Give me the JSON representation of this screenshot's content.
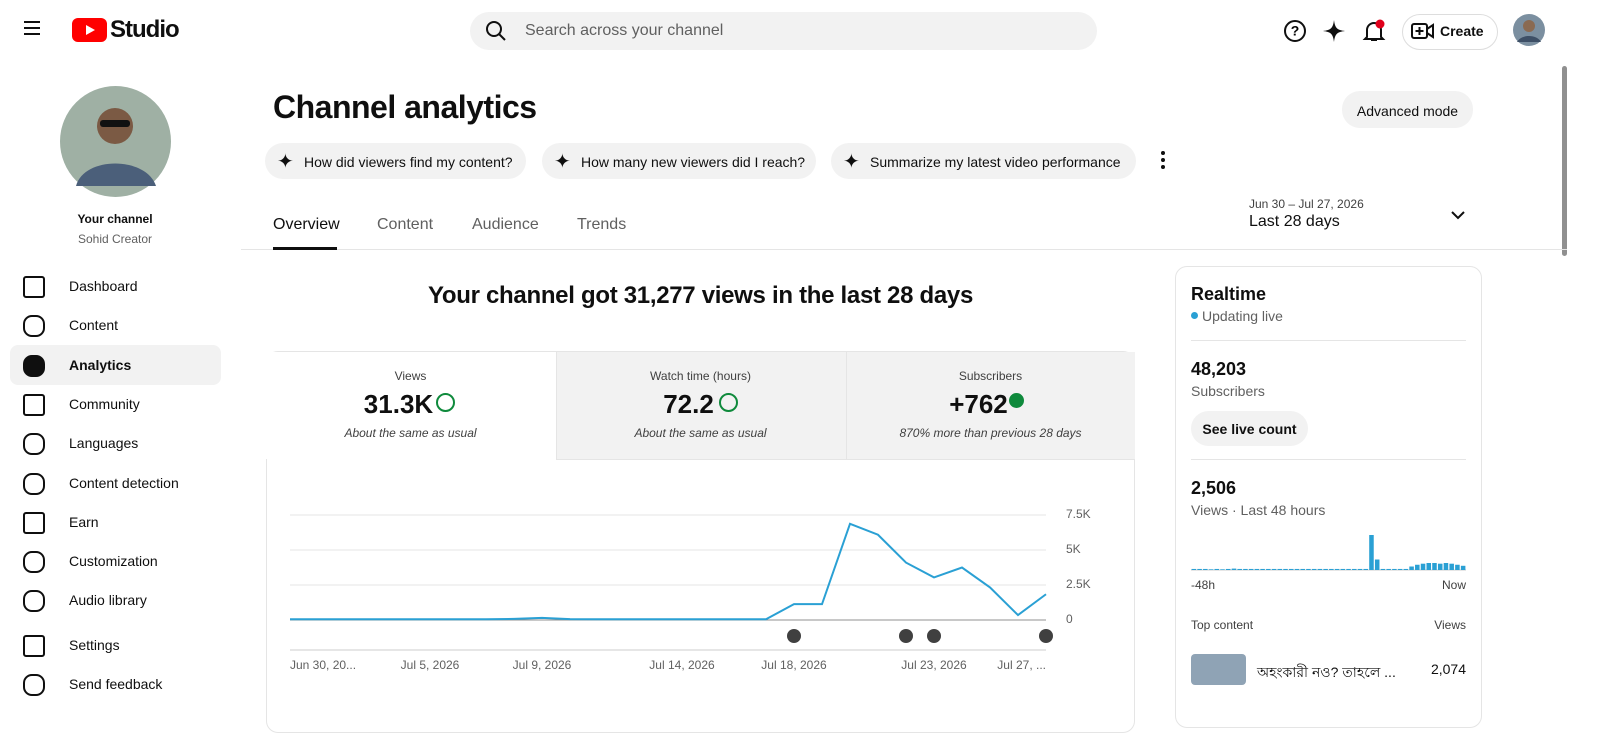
{
  "header": {
    "logo": "Studio",
    "search": "Search across your channel",
    "create": "Create"
  },
  "sidebar": {
    "channel_label": "Your channel",
    "channel_name": "Sohid Creator",
    "nav": [
      "Dashboard",
      "Content",
      "Analytics",
      "Community",
      "Languages",
      "Content detection",
      "Earn",
      "Customization",
      "Audio library",
      "Settings",
      "Send feedback"
    ],
    "active": 2
  },
  "page": {
    "title": "Channel analytics",
    "advanced_mode": "Advanced mode",
    "prompts": [
      "How did viewers find my content?",
      "How many new viewers did I reach?",
      "Summarize my latest video performance"
    ],
    "tabs": [
      "Overview",
      "Content",
      "Audience",
      "Trends"
    ],
    "active_tab": 0,
    "date_range": "Jun 30 – Jul 27, 2026",
    "period": "Last 28 days",
    "headline": "Your channel got 31,277 views in the last 28 days"
  },
  "metrics": [
    {
      "label": "Views",
      "value": "31.3K",
      "note": "About the same as usual"
    },
    {
      "label": "Watch time (hours)",
      "value": "72.2",
      "note": "About the same as usual"
    },
    {
      "label": "Subscribers",
      "value": "+762",
      "note": "870% more than previous 28 days"
    }
  ],
  "realtime": {
    "title": "Realtime",
    "status": "Updating live",
    "subscribers": "48,203",
    "subscribers_label": "Subscribers",
    "see_live": "See live count",
    "views": "2,506",
    "views_label": "Views · Last 48 hours",
    "top_content": "Top content",
    "views_col": "Views",
    "items": [
      {
        "title": "অহংকারী নও? তাহলে ...",
        "views": "2,074"
      }
    ]
  },
  "chart_data": [
    {
      "type": "line",
      "color": "#2aa0d4",
      "grid": true,
      "categories": [
        "Jun 30, 20...",
        null,
        null,
        null,
        null,
        "Jul 5, 2026",
        null,
        null,
        null,
        "Jul 9, 2026",
        null,
        null,
        null,
        null,
        "Jul 14, 2026",
        null,
        null,
        null,
        "Jul 18, 2026",
        null,
        null,
        null,
        null,
        "Jul 23, 2026",
        null,
        null,
        null,
        "Jul 27, ..."
      ],
      "values": [
        50,
        50,
        50,
        50,
        50,
        50,
        50,
        50,
        80,
        150,
        60,
        50,
        50,
        50,
        50,
        50,
        50,
        50,
        1130,
        1130,
        6870,
        6090,
        4100,
        3040,
        3750,
        2330,
        350,
        1840
      ],
      "ylim": [
        0,
        8500
      ],
      "yticks": [
        0,
        {
          "value": 2500,
          "label": "2.5K"
        },
        {
          "value": 5000,
          "label": "5K"
        },
        {
          "value": 7500,
          "label": "7.5K"
        }
      ]
    },
    {
      "type": "bar",
      "color": "#2aa0d4",
      "categories": [
        "-48h",
        null,
        null,
        null,
        null,
        null,
        null,
        null,
        null,
        null,
        null,
        null,
        null,
        null,
        null,
        null,
        null,
        null,
        null,
        null,
        null,
        null,
        null,
        null,
        null,
        null,
        null,
        null,
        null,
        null,
        null,
        null,
        null,
        null,
        null,
        null,
        null,
        null,
        null,
        null,
        null,
        null,
        null,
        null,
        null,
        null,
        null,
        "Now"
      ],
      "values": [
        3,
        3,
        3,
        2,
        3,
        2,
        3,
        4,
        3,
        3,
        3,
        3,
        3,
        3,
        3,
        3,
        3,
        3,
        3,
        3,
        3,
        3,
        3,
        3,
        3,
        3,
        3,
        3,
        3,
        3,
        3,
        100,
        30,
        3,
        3,
        3,
        3,
        3,
        10,
        15,
        18,
        20,
        20,
        18,
        20,
        18,
        15,
        12
      ],
      "ylim": [
        0,
        100
      ]
    }
  ]
}
